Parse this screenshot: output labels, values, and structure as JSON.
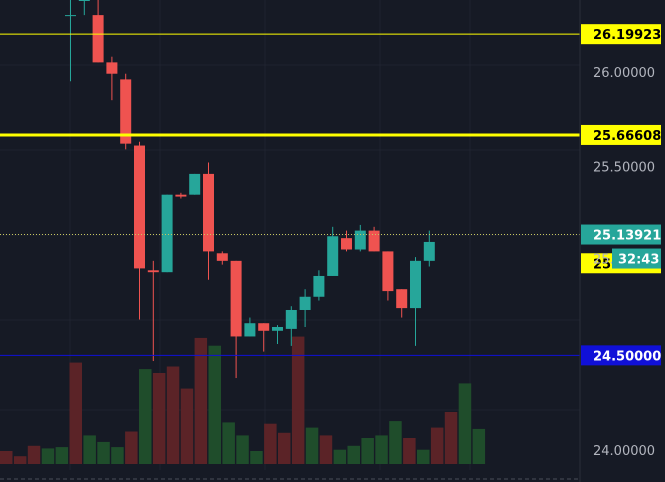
{
  "chart_data": {
    "type": "candlestick",
    "ylim": [
      23.83,
      26.38
    ],
    "grid": true,
    "y_ticks": [
      {
        "value": 26.0,
        "label": "26.00000"
      },
      {
        "value": 25.5,
        "label": "25.50000"
      },
      {
        "value": 24.0,
        "label": "24.00000"
      }
    ],
    "partial_tick_label": "25.",
    "countdown": "32:43",
    "price_lines": [
      {
        "value": 26.19923,
        "label": "26.19923",
        "color": "#ffff00",
        "kind": "thin"
      },
      {
        "value": 25.66608,
        "label": "25.66608",
        "color": "#ffff00",
        "kind": "thick"
      },
      {
        "value": 25.13921,
        "label": "25.13921",
        "color": "#26a69a",
        "kind": "dotted"
      },
      {
        "value": 25.13722,
        "label": "25.13722",
        "color": "#ffff00",
        "kind": "tag-only",
        "tag_offset_value": -0.15
      },
      {
        "value": 24.5,
        "label": "24.50000",
        "color": "#1010d8",
        "kind": "thin"
      }
    ],
    "bull_color": "#26a69a",
    "bear_color": "#ef5350",
    "volume_bull_color": "#1f4d2b",
    "volume_bear_color": "#5b2327",
    "candles": [
      {
        "o": 26.3,
        "h": 26.55,
        "l": 25.95,
        "c": 26.3,
        "v": 0.18
      },
      {
        "o": 26.38,
        "h": 26.5,
        "l": 26.3,
        "c": 26.38,
        "v": 0.0
      },
      {
        "o": 26.3,
        "h": 26.4,
        "l": 26.05,
        "c": 26.05,
        "v": 0.0
      },
      {
        "o": 26.05,
        "h": 26.08,
        "l": 25.85,
        "c": 25.99,
        "v": 0.0
      },
      {
        "o": 25.96,
        "h": 25.99,
        "l": 25.59,
        "c": 25.62,
        "v": 0.0
      },
      {
        "o": 25.61,
        "h": 25.63,
        "l": 24.69,
        "c": 24.96,
        "v": 0.0
      },
      {
        "o": 24.95,
        "h": 25.0,
        "l": 24.47,
        "c": 24.94,
        "v": 0.0
      },
      {
        "o": 24.94,
        "h": 25.35,
        "l": 24.94,
        "c": 25.35,
        "v": 0.0
      },
      {
        "o": 25.35,
        "h": 25.36,
        "l": 25.33,
        "c": 25.34,
        "v": 0.0
      },
      {
        "o": 25.35,
        "h": 25.46,
        "l": 25.35,
        "c": 25.46,
        "v": 0.0
      },
      {
        "o": 25.46,
        "h": 25.52,
        "l": 24.9,
        "c": 25.05,
        "v": 0.0
      },
      {
        "o": 25.04,
        "h": 25.05,
        "l": 24.98,
        "c": 25.0,
        "v": 0.0
      },
      {
        "o": 25.0,
        "h": 25.0,
        "l": 24.38,
        "c": 24.6,
        "v": 0.0
      },
      {
        "o": 24.6,
        "h": 24.7,
        "l": 24.6,
        "c": 24.67,
        "v": 0.0
      },
      {
        "o": 24.67,
        "h": 24.67,
        "l": 24.52,
        "c": 24.63,
        "v": 0.0
      },
      {
        "o": 24.63,
        "h": 24.66,
        "l": 24.56,
        "c": 24.65,
        "v": 0.0
      },
      {
        "o": 24.64,
        "h": 24.76,
        "l": 24.55,
        "c": 24.74,
        "v": 0.0
      },
      {
        "o": 24.74,
        "h": 24.85,
        "l": 24.65,
        "c": 24.81,
        "v": 0.0
      },
      {
        "o": 24.81,
        "h": 24.95,
        "l": 24.79,
        "c": 24.92,
        "v": 0.0
      },
      {
        "o": 24.92,
        "h": 25.18,
        "l": 24.92,
        "c": 25.13,
        "v": 0.0
      },
      {
        "o": 25.12,
        "h": 25.16,
        "l": 25.05,
        "c": 25.06,
        "v": 0.0
      },
      {
        "o": 25.06,
        "h": 25.19,
        "l": 25.05,
        "c": 25.16,
        "v": 0.0
      },
      {
        "o": 25.16,
        "h": 25.18,
        "l": 25.05,
        "c": 25.05,
        "v": 0.0
      },
      {
        "o": 25.05,
        "h": 25.05,
        "l": 24.79,
        "c": 24.84,
        "v": 0.0
      },
      {
        "o": 24.85,
        "h": 24.85,
        "l": 24.7,
        "c": 24.75,
        "v": 0.0
      },
      {
        "o": 24.75,
        "h": 25.02,
        "l": 24.55,
        "c": 25.0,
        "v": 0.0
      },
      {
        "o": 25.0,
        "h": 25.16,
        "l": 24.97,
        "c": 25.1,
        "v": 0.0
      }
    ]
  }
}
